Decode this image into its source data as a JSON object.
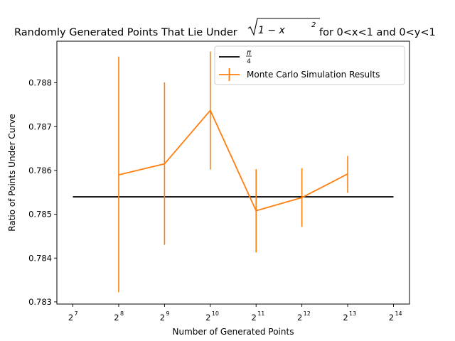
{
  "chart_data": {
    "type": "line",
    "title_parts": {
      "prefix": "Randomly Generated Points That Lie Under",
      "sqrt_inner": "1 − x",
      "exponent": "2",
      "suffix": "for 0<x<1 and 0<y<1"
    },
    "xlabel": "Number of Generated Points",
    "ylabel": "Ratio of Points Under Curve",
    "x_scale": "log2",
    "xlim": [
      128,
      16384
    ],
    "ylim": [
      0.78295,
      0.78895
    ],
    "x_ticks": [
      {
        "value": 128,
        "base": "2",
        "exp": "7"
      },
      {
        "value": 256,
        "base": "2",
        "exp": "8"
      },
      {
        "value": 512,
        "base": "2",
        "exp": "9"
      },
      {
        "value": 1024,
        "base": "2",
        "exp": "10"
      },
      {
        "value": 2048,
        "base": "2",
        "exp": "11"
      },
      {
        "value": 4096,
        "base": "2",
        "exp": "12"
      },
      {
        "value": 8192,
        "base": "2",
        "exp": "13"
      },
      {
        "value": 16384,
        "base": "2",
        "exp": "14"
      }
    ],
    "y_ticks": [
      0.783,
      0.784,
      0.785,
      0.786,
      0.787,
      0.788
    ],
    "y_tick_labels": [
      "0.783",
      "0.784",
      "0.785",
      "0.786",
      "0.787",
      "0.788"
    ],
    "grid": false,
    "legend_position": "top-right",
    "series": [
      {
        "name": "π/4",
        "legend_numerator": "π",
        "legend_denominator": "4",
        "kind": "hline",
        "color": "#000000",
        "x": [
          128,
          16384
        ],
        "y": [
          0.785398,
          0.785398
        ]
      },
      {
        "name": "Monte Carlo Simulation Results",
        "kind": "errorbar",
        "color": "#ff7f0e",
        "x": [
          256,
          512,
          1024,
          2048,
          4096,
          8192
        ],
        "y": [
          0.7859,
          0.78615,
          0.78737,
          0.78508,
          0.78538,
          0.78592
        ],
        "y_lower": [
          0.78322,
          0.7843,
          0.78602,
          0.78413,
          0.78471,
          0.78549
        ],
        "y_upper": [
          0.7886,
          0.78801,
          0.78871,
          0.78603,
          0.78605,
          0.78633
        ]
      }
    ]
  }
}
